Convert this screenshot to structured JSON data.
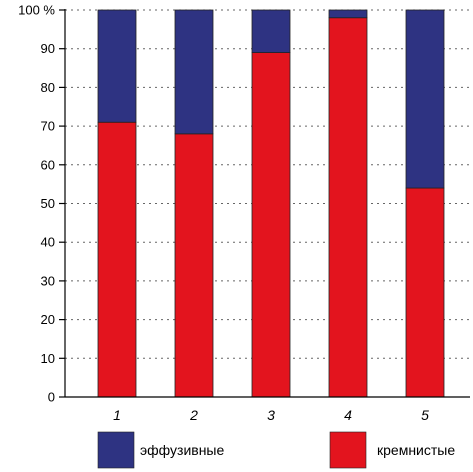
{
  "chart_data": {
    "type": "bar",
    "stacked": true,
    "categories": [
      "1",
      "2",
      "3",
      "4",
      "5"
    ],
    "series": [
      {
        "name": "кремнистые",
        "color": "#e3141e",
        "values": [
          71,
          68,
          89,
          98,
          54
        ]
      },
      {
        "name": "эффузивные",
        "color": "#2e3382",
        "values": [
          29,
          32,
          11,
          2,
          46
        ]
      }
    ],
    "ylim": [
      0,
      100
    ],
    "yticks": [
      {
        "value": 0,
        "label": "0"
      },
      {
        "value": 10,
        "label": "10"
      },
      {
        "value": 20,
        "label": "20"
      },
      {
        "value": 30,
        "label": "30"
      },
      {
        "value": 40,
        "label": "40"
      },
      {
        "value": 50,
        "label": "50"
      },
      {
        "value": 60,
        "label": "60"
      },
      {
        "value": 70,
        "label": "70"
      },
      {
        "value": 80,
        "label": "80"
      },
      {
        "value": 90,
        "label": "90"
      },
      {
        "value": 100,
        "label": "100 %"
      }
    ],
    "grid": true,
    "legend_position": "bottom",
    "legend_order": [
      "эффузивные",
      "кремнистые"
    ]
  }
}
